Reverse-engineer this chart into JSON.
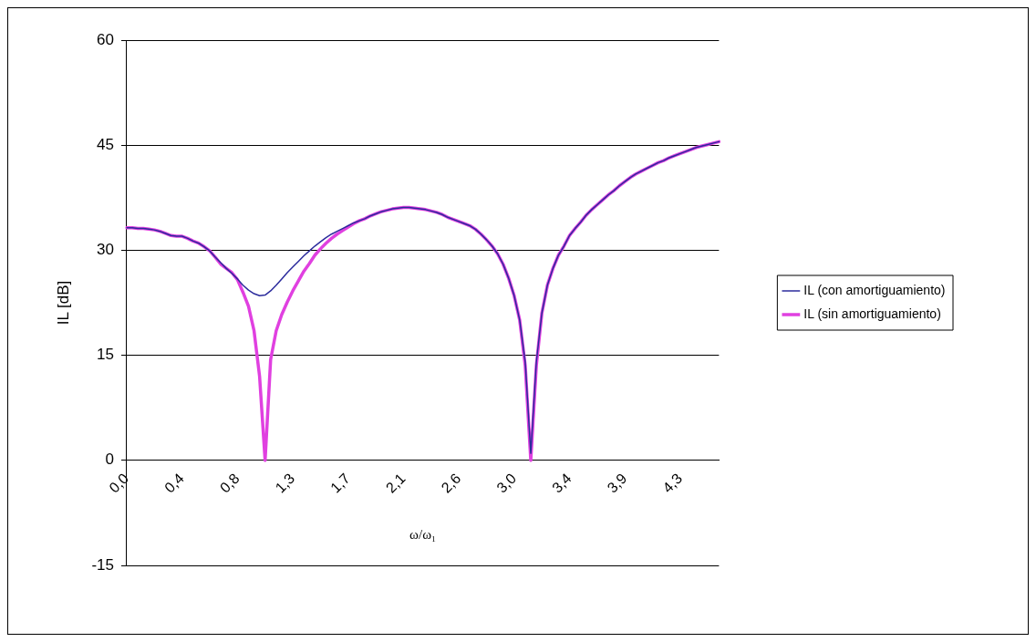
{
  "chart_data": {
    "type": "line",
    "xlabel": "ω/ω₁",
    "ylabel": "IL [dB]",
    "categories": [
      "0,0",
      null,
      null,
      null,
      null,
      null,
      null,
      null,
      null,
      null,
      "0,4",
      null,
      null,
      null,
      null,
      null,
      null,
      null,
      null,
      null,
      "0,8",
      null,
      null,
      null,
      null,
      null,
      null,
      null,
      null,
      null,
      "1,3",
      null,
      null,
      null,
      null,
      null,
      null,
      null,
      null,
      null,
      "1,7",
      null,
      null,
      null,
      null,
      null,
      null,
      null,
      null,
      null,
      "2,1",
      null,
      null,
      null,
      null,
      null,
      null,
      null,
      null,
      null,
      "2,6",
      null,
      null,
      null,
      null,
      null,
      null,
      null,
      null,
      null,
      "3,0",
      null,
      null,
      null,
      null,
      null,
      null,
      null,
      null,
      null,
      "3,4",
      null,
      null,
      null,
      null,
      null,
      null,
      null,
      null,
      null,
      "3,9",
      null,
      null,
      null,
      null,
      null,
      null,
      null,
      null,
      null,
      "4,3",
      null,
      null,
      null,
      null,
      null,
      null,
      null
    ],
    "series": [
      {
        "name": "IL (con amortiguamiento)",
        "color": "#2b2b9c",
        "values": [
          33.2,
          33.2,
          33.1,
          33.1,
          33.0,
          32.9,
          32.7,
          32.4,
          32.1,
          32.0,
          32.0,
          31.7,
          31.3,
          31.0,
          30.5,
          29.9,
          29.0,
          28.2,
          27.4,
          26.7,
          25.9,
          25.0,
          24.3,
          23.8,
          23.5,
          23.6,
          24.2,
          25.0,
          25.9,
          26.8,
          27.6,
          28.4,
          29.2,
          29.9,
          30.6,
          31.2,
          31.8,
          32.3,
          32.7,
          33.1,
          33.5,
          33.9,
          34.2,
          34.5,
          34.9,
          35.2,
          35.5,
          35.7,
          35.9,
          36.0,
          36.1,
          36.1,
          36.0,
          35.9,
          35.8,
          35.6,
          35.4,
          35.1,
          34.7,
          34.4,
          34.1,
          33.8,
          33.5,
          33.0,
          32.3,
          31.5,
          30.6,
          29.5,
          28.0,
          26.0,
          23.5,
          20.0,
          14.0,
          1.0,
          14.0,
          21.0,
          25.0,
          27.4,
          29.3,
          30.6,
          32.1,
          33.1,
          34.0,
          35.0,
          35.8,
          36.5,
          37.2,
          37.9,
          38.5,
          39.2,
          39.8,
          40.4,
          40.9,
          41.3,
          41.7,
          42.1,
          42.5,
          42.8,
          43.2,
          43.5,
          43.8,
          44.1,
          44.4,
          44.7,
          44.9,
          45.1,
          45.3,
          45.5
        ]
      },
      {
        "name": "IL (sin amortiguamiento)",
        "color": "#e040e0",
        "values": [
          33.2,
          33.2,
          33.1,
          33.1,
          33.0,
          32.9,
          32.7,
          32.4,
          32.1,
          32.0,
          32.0,
          31.7,
          31.3,
          31.0,
          30.5,
          29.9,
          29.0,
          28.0,
          27.4,
          26.8,
          25.8,
          24.0,
          22.0,
          18.5,
          12.0,
          0,
          14.4,
          18.5,
          20.8,
          22.6,
          24.2,
          25.6,
          27.0,
          28.1,
          29.3,
          30.2,
          31.0,
          31.7,
          32.3,
          32.8,
          33.3,
          33.8,
          34.2,
          34.5,
          34.9,
          35.2,
          35.5,
          35.7,
          35.9,
          36.0,
          36.1,
          36.1,
          36.0,
          35.9,
          35.8,
          35.6,
          35.4,
          35.1,
          34.7,
          34.4,
          34.1,
          33.8,
          33.5,
          33.0,
          32.3,
          31.5,
          30.6,
          29.5,
          28.0,
          26.0,
          23.5,
          20.0,
          13.5,
          0,
          13.5,
          21.0,
          25.0,
          27.4,
          29.3,
          30.6,
          32.1,
          33.1,
          34.0,
          35.0,
          35.8,
          36.5,
          37.2,
          37.9,
          38.5,
          39.2,
          39.8,
          40.4,
          40.9,
          41.3,
          41.7,
          42.1,
          42.5,
          42.8,
          43.2,
          43.5,
          43.8,
          44.1,
          44.4,
          44.7,
          44.9,
          45.1,
          45.3,
          45.5
        ]
      }
    ],
    "ylim": [
      -15,
      60
    ],
    "yticks": [
      -15,
      0,
      15,
      30,
      45,
      60
    ],
    "grid": "y",
    "legend": "right",
    "marker": "none",
    "line_style": "solid"
  }
}
